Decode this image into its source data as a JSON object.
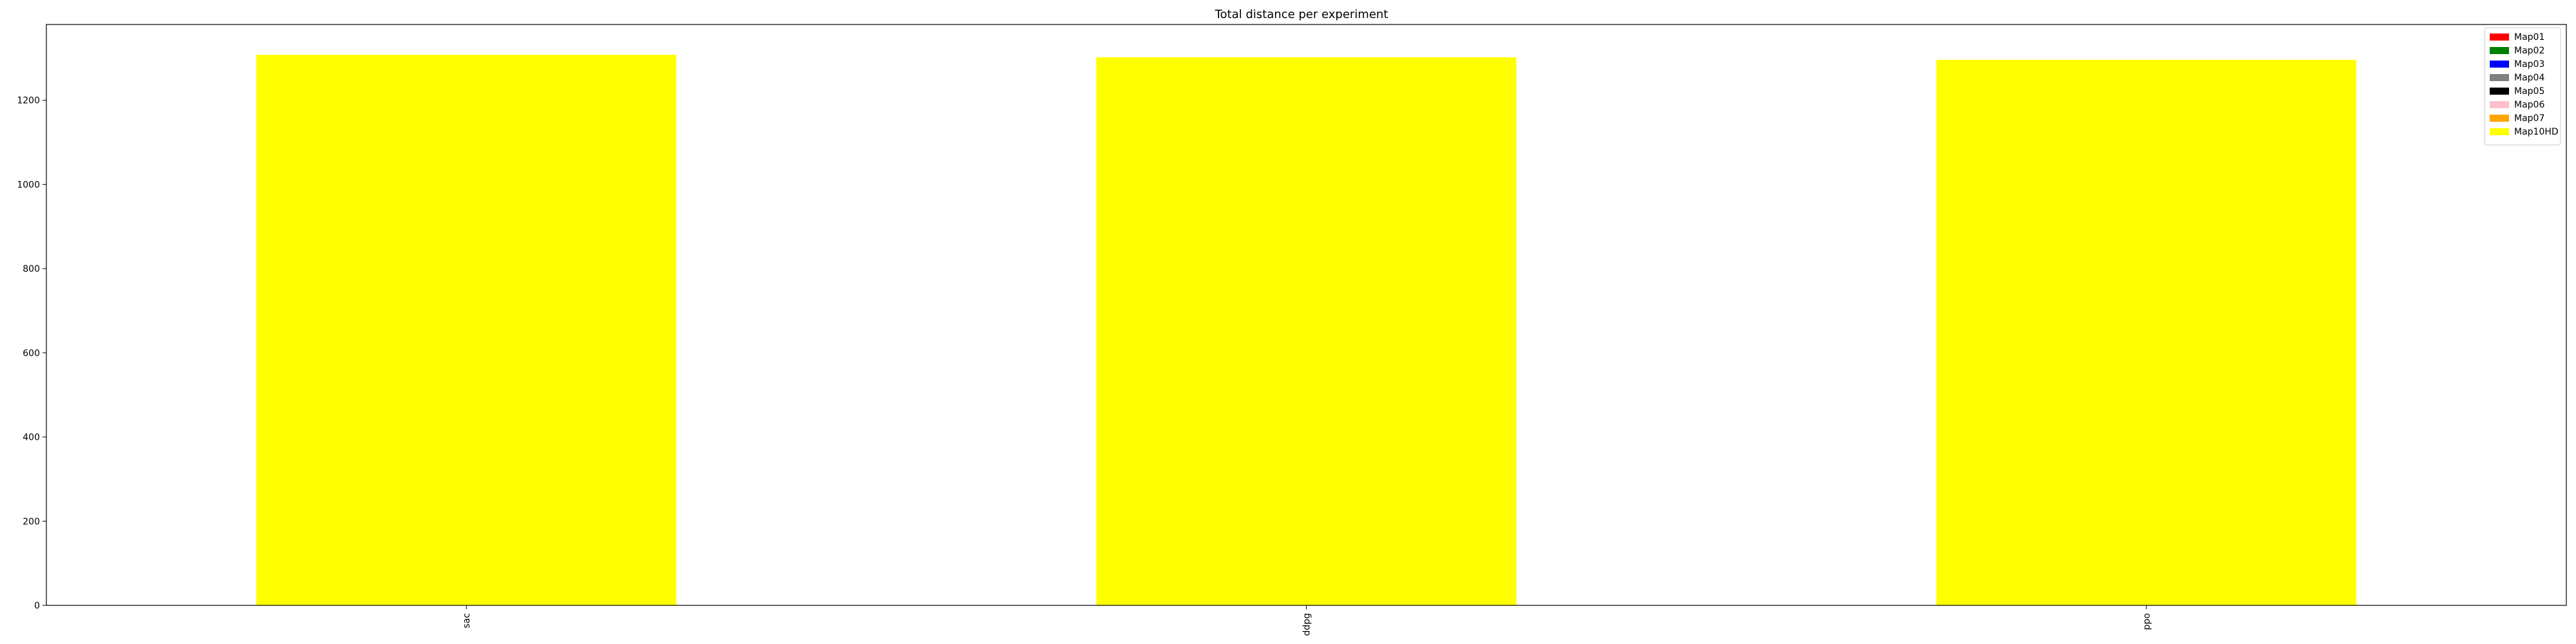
{
  "chart_data": {
    "type": "bar",
    "stacked": true,
    "title": "Total distance per experiment",
    "xlabel": "",
    "ylabel": "",
    "categories": [
      "sac",
      "ddpg",
      "ppo"
    ],
    "ylim": [
      0,
      1380
    ],
    "yticks": [
      0,
      200,
      400,
      600,
      800,
      1000,
      1200
    ],
    "grid": false,
    "legend_position": "top-right",
    "series": [
      {
        "name": "Map01",
        "color": "#ff0000",
        "values": [
          0,
          0,
          0
        ]
      },
      {
        "name": "Map02",
        "color": "#008000",
        "values": [
          0,
          0,
          0
        ]
      },
      {
        "name": "Map03",
        "color": "#0000ff",
        "values": [
          0,
          0,
          0
        ]
      },
      {
        "name": "Map04",
        "color": "#808080",
        "values": [
          0,
          0,
          0
        ]
      },
      {
        "name": "Map05",
        "color": "#000000",
        "values": [
          0,
          0,
          0
        ]
      },
      {
        "name": "Map06",
        "color": "#ffc0cb",
        "values": [
          0,
          0,
          0
        ]
      },
      {
        "name": "Map07",
        "color": "#ffa500",
        "values": [
          0,
          0,
          0
        ]
      },
      {
        "name": "Map10HD",
        "color": "#ffff00",
        "values": [
          1308,
          1302,
          1296
        ]
      }
    ]
  }
}
